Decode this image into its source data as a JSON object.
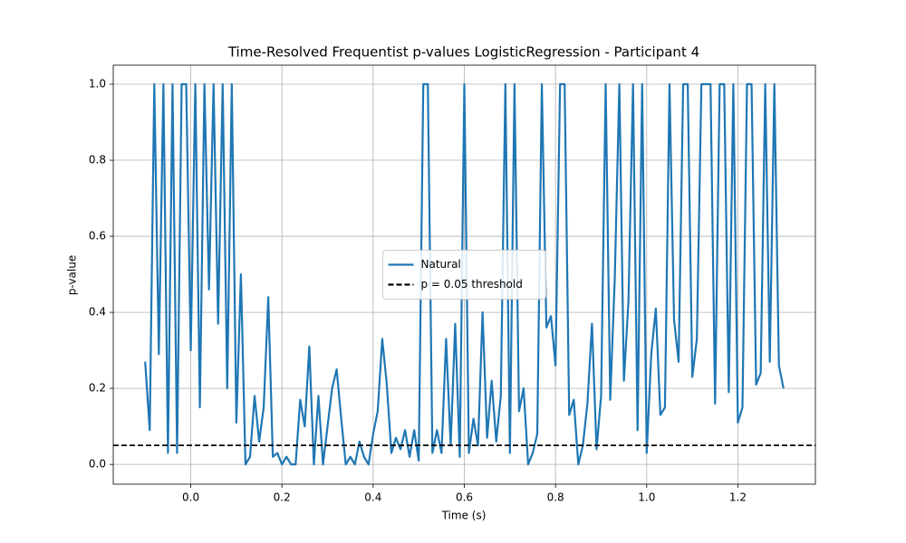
{
  "chart_data": {
    "type": "line",
    "title": "Time-Resolved Frequentist p-values LogisticRegression - Participant 4",
    "x_label": "Time (s)",
    "y_label": "p-value",
    "x": [
      -0.1,
      -0.09,
      -0.08,
      -0.07,
      -0.06,
      -0.05,
      -0.04,
      -0.03,
      -0.02,
      -0.01,
      0,
      0.01,
      0.02,
      0.03,
      0.04,
      0.05,
      0.06,
      0.07,
      0.08,
      0.09,
      0.1,
      0.11,
      0.12,
      0.13,
      0.14,
      0.15,
      0.16,
      0.17,
      0.18,
      0.19,
      0.2,
      0.21,
      0.22,
      0.23,
      0.24,
      0.25,
      0.26,
      0.27,
      0.28,
      0.29,
      0.3,
      0.31,
      0.32,
      0.33,
      0.34,
      0.35,
      0.36,
      0.37,
      0.38,
      0.39,
      0.4,
      0.41,
      0.42,
      0.43,
      0.44,
      0.45,
      0.46,
      0.47,
      0.48,
      0.49,
      0.5,
      0.51,
      0.52,
      0.53,
      0.54,
      0.55,
      0.56,
      0.57,
      0.58,
      0.59,
      0.6,
      0.61,
      0.62,
      0.63,
      0.64,
      0.65,
      0.66,
      0.67,
      0.68,
      0.69,
      0.7,
      0.71,
      0.72,
      0.73,
      0.74,
      0.75,
      0.76,
      0.77,
      0.78,
      0.79,
      0.8,
      0.81,
      0.82,
      0.83,
      0.84,
      0.85,
      0.86,
      0.87,
      0.88,
      0.89,
      0.9,
      0.91,
      0.92,
      0.93,
      0.94,
      0.95,
      0.96,
      0.97,
      0.98,
      0.99,
      1,
      1.01,
      1.02,
      1.03,
      1.04,
      1.05,
      1.06,
      1.07,
      1.08,
      1.09,
      1.1,
      1.11,
      1.12,
      1.13,
      1.14,
      1.15,
      1.16,
      1.17,
      1.18,
      1.19,
      1.2,
      1.21,
      1.22,
      1.23,
      1.24,
      1.25,
      1.26,
      1.27,
      1.28,
      1.29,
      1.3
    ],
    "series": [
      {
        "name": "Natural",
        "color": "#1f77b4",
        "values": [
          0.27,
          0.09,
          1.0,
          0.29,
          1.0,
          0.03,
          1.0,
          0.03,
          1.0,
          1.0,
          0.3,
          1.0,
          0.15,
          1.0,
          0.46,
          1.0,
          0.37,
          1.0,
          0.2,
          1.0,
          0.11,
          0.5,
          0.0,
          0.02,
          0.18,
          0.06,
          0.15,
          0.44,
          0.02,
          0.03,
          0.0,
          0.02,
          0.0,
          0.0,
          0.17,
          0.1,
          0.31,
          0.0,
          0.18,
          0.0,
          0.1,
          0.2,
          0.25,
          0.12,
          0.0,
          0.02,
          0.0,
          0.06,
          0.02,
          0.0,
          0.08,
          0.14,
          0.33,
          0.21,
          0.03,
          0.07,
          0.04,
          0.09,
          0.02,
          0.09,
          0.01,
          1.0,
          1.0,
          0.03,
          0.09,
          0.03,
          0.33,
          0.05,
          0.37,
          0.02,
          1.0,
          0.03,
          0.12,
          0.05,
          0.4,
          0.07,
          0.22,
          0.06,
          0.18,
          1.0,
          0.03,
          1.0,
          0.14,
          0.2,
          0.0,
          0.03,
          0.08,
          1.0,
          0.36,
          0.39,
          0.26,
          1.0,
          1.0,
          0.13,
          0.17,
          0.0,
          0.05,
          0.16,
          0.37,
          0.04,
          0.18,
          1.0,
          0.17,
          0.49,
          1.0,
          0.22,
          0.43,
          1.0,
          0.09,
          1.0,
          0.03,
          0.29,
          0.41,
          0.13,
          0.15,
          1.0,
          0.38,
          0.27,
          1.0,
          1.0,
          0.23,
          0.33,
          1.0,
          1.0,
          1.0,
          0.16,
          1.0,
          1.0,
          0.19,
          1.0,
          0.11,
          0.15,
          1.0,
          1.0,
          0.21,
          0.24,
          1.0,
          0.27,
          1.0,
          0.26,
          0.2
        ]
      }
    ],
    "threshold": {
      "name": "p = 0.05 threshold",
      "value": 0.05,
      "color": "#000000",
      "dashed": true
    },
    "xlim": [
      -0.17,
      1.37
    ],
    "xticks": [
      {
        "value": 0,
        "label": "0.0"
      },
      0.2,
      0.4,
      0.6,
      0.8,
      {
        "value": 1,
        "label": "1.0"
      },
      1.2
    ],
    "ylim": [
      -0.052,
      1.05
    ],
    "yticks": [
      {
        "value": 0,
        "label": "0.0"
      },
      0.2,
      0.4,
      0.6,
      0.8,
      {
        "value": 1,
        "label": "1.0"
      }
    ],
    "grid": true,
    "legend": "center"
  }
}
